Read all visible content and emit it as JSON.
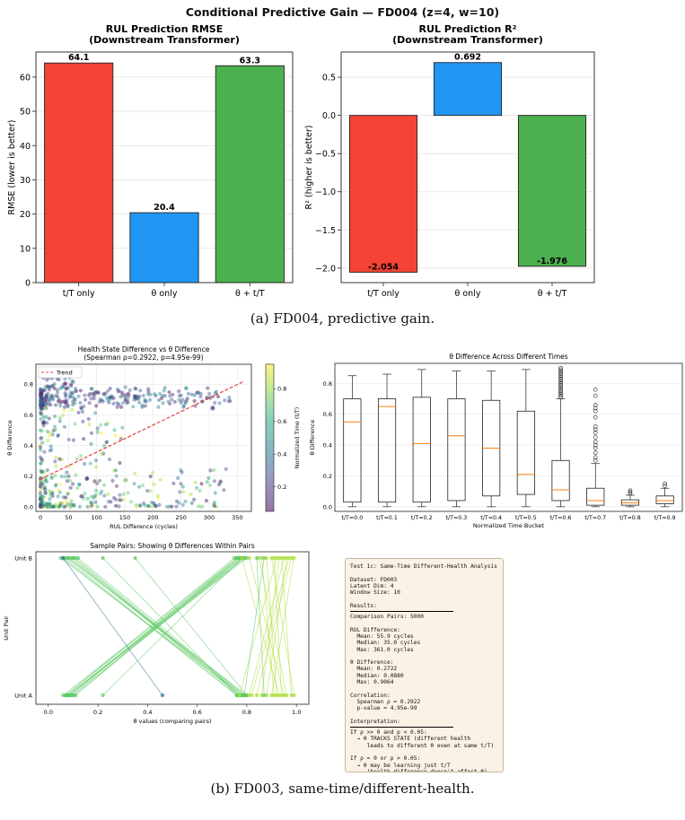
{
  "figure_title": "Conditional Predictive Gain — FD004 (z=4, w=10)",
  "captions": {
    "a": "(a) FD004, predictive gain.",
    "b": "(b) FD003, same-time/different-health."
  },
  "colors": {
    "red": "#f44336",
    "blue": "#2196f3",
    "green": "#4caf50",
    "trend": "#e8403a",
    "median": "#ff7f0e",
    "textbox_bg": "#fbf2e6"
  },
  "chart_data": [
    {
      "id": "rmse",
      "type": "bar",
      "title": "RUL Prediction RMSE\n(Downstream Transformer)",
      "categories": [
        "t/T only",
        "θ only",
        "θ + t/T"
      ],
      "values": [
        64.1,
        20.4,
        63.3
      ],
      "value_labels": [
        "64.1",
        "20.4",
        "63.3"
      ],
      "colors": [
        "#f44336",
        "#2196f3",
        "#4caf50"
      ],
      "ylabel": "RMSE (lower is better)",
      "ylim": [
        0,
        67.3
      ],
      "yticks": [
        0,
        10,
        20,
        30,
        40,
        50,
        60
      ],
      "grid": true
    },
    {
      "id": "r2",
      "type": "bar",
      "title": "RUL Prediction R²\n(Downstream Transformer)",
      "categories": [
        "t/T only",
        "θ only",
        "θ + t/T"
      ],
      "values": [
        -2.054,
        0.692,
        -1.976
      ],
      "value_labels": [
        "-2.054",
        "0.692",
        "-1.976"
      ],
      "colors": [
        "#f44336",
        "#2196f3",
        "#4caf50"
      ],
      "ylabel": "R² (higher is better)",
      "ylim": [
        -2.19,
        0.83
      ],
      "yticks": [
        -2.0,
        -1.5,
        -1.0,
        -0.5,
        0.0,
        0.5
      ],
      "ytick_labels": [
        "−2.0",
        "−1.5",
        "−1.0",
        "−0.5",
        "0.0",
        "0.5"
      ],
      "grid": true
    },
    {
      "id": "scatter",
      "type": "scatter",
      "title": "Health State Difference vs θ Difference\n(Spearman ρ=0.2922, p=4.95e-99)",
      "xlabel": "RUL Difference (cycles)",
      "ylabel": "θ Difference",
      "xlim": [
        -8,
        375
      ],
      "ylim": [
        -0.03,
        0.93
      ],
      "xticks": [
        0,
        50,
        100,
        150,
        200,
        250,
        300,
        350
      ],
      "yticks": [
        0.0,
        0.2,
        0.4,
        0.6,
        0.8
      ],
      "legend": {
        "placement": "top-left",
        "entries": [
          "Trend"
        ]
      },
      "trend": {
        "x": [
          0,
          360
        ],
        "y": [
          0.18,
          0.815
        ]
      },
      "colorbar": {
        "label": "Normalized Time (t/T)",
        "ticks": [
          0.2,
          0.4,
          0.6,
          0.8
        ],
        "range": [
          0.05,
          0.95
        ]
      },
      "approx_point_count": 5000,
      "grid": true
    },
    {
      "id": "box",
      "type": "box",
      "title": "θ Difference Across Different Times",
      "xlabel": "Normalized Time Bucket",
      "ylabel": "θ Difference",
      "categories": [
        "t/T=0.0",
        "t/T=0.1",
        "t/T=0.2",
        "t/T=0.3",
        "t/T=0.4",
        "t/T=0.5",
        "t/T=0.6",
        "t/T=0.7",
        "t/T=0.8",
        "t/T=0.9"
      ],
      "boxes": [
        {
          "whislo": 0.0,
          "q1": 0.03,
          "med": 0.55,
          "q3": 0.7,
          "whishi": 0.85,
          "fliers": []
        },
        {
          "whislo": 0.0,
          "q1": 0.03,
          "med": 0.65,
          "q3": 0.7,
          "whishi": 0.86,
          "fliers": []
        },
        {
          "whislo": 0.0,
          "q1": 0.03,
          "med": 0.41,
          "q3": 0.71,
          "whishi": 0.89,
          "fliers": []
        },
        {
          "whislo": 0.0,
          "q1": 0.04,
          "med": 0.46,
          "q3": 0.7,
          "whishi": 0.88,
          "fliers": []
        },
        {
          "whislo": 0.0,
          "q1": 0.07,
          "med": 0.38,
          "q3": 0.69,
          "whishi": 0.88,
          "fliers": []
        },
        {
          "whislo": 0.0,
          "q1": 0.08,
          "med": 0.21,
          "q3": 0.62,
          "whishi": 0.89,
          "fliers": []
        },
        {
          "whislo": 0.0,
          "q1": 0.04,
          "med": 0.11,
          "q3": 0.3,
          "whishi": 0.7,
          "fliers": [
            0.71,
            0.72,
            0.73,
            0.74,
            0.75,
            0.76,
            0.77,
            0.78,
            0.79,
            0.8,
            0.81,
            0.82,
            0.83,
            0.84,
            0.85,
            0.86,
            0.87,
            0.88,
            0.89,
            0.9
          ]
        },
        {
          "whislo": 0.0,
          "q1": 0.01,
          "med": 0.04,
          "q3": 0.12,
          "whishi": 0.28,
          "fliers": [
            0.3,
            0.32,
            0.35,
            0.38,
            0.4,
            0.42,
            0.45,
            0.48,
            0.5,
            0.52,
            0.58,
            0.62,
            0.64,
            0.66,
            0.72,
            0.76
          ]
        },
        {
          "whislo": 0.0,
          "q1": 0.01,
          "med": 0.025,
          "q3": 0.045,
          "whishi": 0.075,
          "fliers": [
            0.085,
            0.095,
            0.105
          ]
        },
        {
          "whislo": 0.0,
          "q1": 0.02,
          "med": 0.04,
          "q3": 0.07,
          "whishi": 0.12,
          "fliers": [
            0.135,
            0.15
          ]
        }
      ],
      "ylim": [
        -0.03,
        0.93
      ],
      "yticks": [
        0.0,
        0.2,
        0.4,
        0.6,
        0.8
      ],
      "grid": true
    },
    {
      "id": "pairs",
      "type": "line",
      "title": "Sample Pairs: Showing θ Differences Within Pairs",
      "xlabel": "θ values (comparing pairs)",
      "ylabel": "Unit Pair",
      "yticklabels": [
        "Unit A",
        "Unit B"
      ],
      "xticks": [
        0.0,
        0.2,
        0.4,
        0.6,
        0.8,
        1.0
      ],
      "xlim": [
        -0.05,
        1.05
      ],
      "pairs": [
        {
          "a": 0.07,
          "b": 0.77
        },
        {
          "a": 0.08,
          "b": 0.78
        },
        {
          "a": 0.09,
          "b": 0.76
        },
        {
          "a": 0.1,
          "b": 0.79
        },
        {
          "a": 0.07,
          "b": 0.75
        },
        {
          "a": 0.22,
          "b": 0.78
        },
        {
          "a": 0.08,
          "b": 0.8
        },
        {
          "a": 0.09,
          "b": 0.77
        },
        {
          "a": 0.06,
          "b": 0.76
        },
        {
          "a": 0.1,
          "b": 0.78
        },
        {
          "a": 0.08,
          "b": 0.79
        },
        {
          "a": 0.11,
          "b": 0.77
        },
        {
          "a": 0.76,
          "b": 0.07
        },
        {
          "a": 0.77,
          "b": 0.09
        },
        {
          "a": 0.78,
          "b": 0.1
        },
        {
          "a": 0.79,
          "b": 0.08
        },
        {
          "a": 0.76,
          "b": 0.06
        },
        {
          "a": 0.78,
          "b": 0.11
        },
        {
          "a": 0.77,
          "b": 0.1
        },
        {
          "a": 0.8,
          "b": 0.08
        },
        {
          "a": 0.76,
          "b": 0.22
        },
        {
          "a": 0.78,
          "b": 0.05
        },
        {
          "a": 0.79,
          "b": 0.12
        },
        {
          "a": 0.46,
          "b": 0.06
        },
        {
          "a": 0.8,
          "b": 0.35
        },
        {
          "a": 0.77,
          "b": 0.92
        },
        {
          "a": 0.81,
          "b": 0.95
        },
        {
          "a": 0.84,
          "b": 0.98
        },
        {
          "a": 0.86,
          "b": 0.93
        },
        {
          "a": 0.88,
          "b": 0.96
        },
        {
          "a": 0.9,
          "b": 0.99
        },
        {
          "a": 0.92,
          "b": 0.88
        },
        {
          "a": 0.94,
          "b": 0.91
        },
        {
          "a": 0.96,
          "b": 0.85
        },
        {
          "a": 0.98,
          "b": 0.94
        },
        {
          "a": 0.99,
          "b": 0.9
        },
        {
          "a": 0.82,
          "b": 0.97
        },
        {
          "a": 0.87,
          "b": 0.84
        },
        {
          "a": 0.93,
          "b": 0.78
        },
        {
          "a": 0.95,
          "b": 0.81
        },
        {
          "a": 0.91,
          "b": 0.86
        },
        {
          "a": 0.79,
          "b": 0.87
        }
      ]
    }
  ],
  "textbox": {
    "lines": [
      "Test 1c: Same-Time Different-Health Analysis",
      "",
      "Dataset: FD003",
      "Latent Dim: 4",
      "Window Size: 10",
      "",
      "Results:",
      "—RULE—",
      "Comparison Pairs: 5000",
      "",
      "RUL Difference:",
      "  Mean: 55.9 cycles",
      "  Median: 35.0 cycles",
      "  Max: 361.0 cycles",
      "",
      "θ Difference:",
      "  Mean: 0.2722",
      "  Median: 0.0880",
      "  Max: 0.9064",
      "",
      "Correlation:",
      "  Spearman ρ = 0.2922",
      "  p-value = 4.95e-99",
      "",
      "Interpretation:",
      "—RULE—",
      "If ρ >> 0 and p < 0.05:",
      "  → θ TRACKS STATE (different health",
      "     leads to different θ even at same t/T)",
      "",
      "If ρ ≈ 0 or p > 0.05:",
      "  → θ may be learning just t/T",
      "     (health difference doesn't affect θ)"
    ]
  }
}
